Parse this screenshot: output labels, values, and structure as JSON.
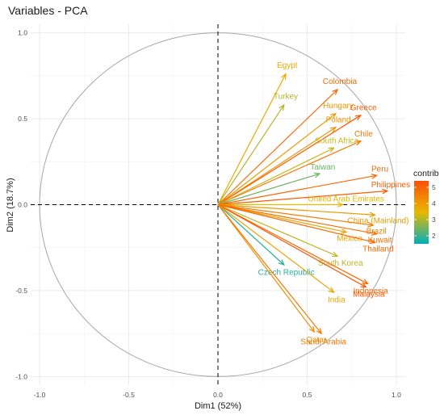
{
  "chart_data": {
    "type": "scatter",
    "title": "Variables - PCA",
    "xlabel": "Dim1 (52%)",
    "ylabel": "Dim2 (18.7%)",
    "xlim": [
      -1.05,
      1.05
    ],
    "ylim": [
      -1.05,
      1.05
    ],
    "xticks": [
      "-1.0",
      "-0.5",
      "0.0",
      "0.5",
      "1.0"
    ],
    "yticks": [
      "-1.0",
      "-0.5",
      "0.0",
      "0.5",
      "1.0"
    ],
    "xtick_values": [
      -1.0,
      -0.5,
      0.0,
      0.5,
      1.0
    ],
    "ytick_values": [
      -1.0,
      -0.5,
      0.0,
      0.5,
      1.0
    ],
    "grid": true,
    "unit_circle": true,
    "legend": {
      "title": "contrib",
      "ticks": [
        "5",
        "4",
        "3",
        "2"
      ],
      "tick_values": [
        5,
        4,
        3,
        2
      ],
      "range": [
        1.5,
        5.4
      ],
      "position": "right",
      "colors": [
        "#00AFBB",
        "#E7B800",
        "#FC4E07"
      ]
    },
    "variables": [
      {
        "name": "Egypt",
        "x": 0.38,
        "y": 0.76,
        "contrib": 3.7
      },
      {
        "name": "Turkey",
        "x": 0.37,
        "y": 0.58,
        "contrib": 3.0
      },
      {
        "name": "Colombia",
        "x": 0.67,
        "y": 0.67,
        "contrib": 4.9
      },
      {
        "name": "Hungary",
        "x": 0.66,
        "y": 0.53,
        "contrib": 4.0
      },
      {
        "name": "Poland",
        "x": 0.66,
        "y": 0.45,
        "contrib": 4.1
      },
      {
        "name": "Greece",
        "x": 0.8,
        "y": 0.52,
        "contrib": 5.1
      },
      {
        "name": "Chile",
        "x": 0.8,
        "y": 0.37,
        "contrib": 4.7
      },
      {
        "name": "South Africa",
        "x": 0.65,
        "y": 0.33,
        "contrib": 3.2
      },
      {
        "name": "Taiwan",
        "x": 0.57,
        "y": 0.18,
        "contrib": 2.4
      },
      {
        "name": "Peru",
        "x": 0.89,
        "y": 0.17,
        "contrib": 4.9
      },
      {
        "name": "Philippines",
        "x": 0.95,
        "y": 0.08,
        "contrib": 5.1
      },
      {
        "name": "United Arab Emirates",
        "x": 0.7,
        "y": 0.0,
        "contrib": 3.5
      },
      {
        "name": "China (Mainland)",
        "x": 0.88,
        "y": -0.06,
        "contrib": 4.0
      },
      {
        "name": "Brazil",
        "x": 0.87,
        "y": -0.12,
        "contrib": 4.5
      },
      {
        "name": "Mexico",
        "x": 0.72,
        "y": -0.16,
        "contrib": 3.8
      },
      {
        "name": "Kuwait",
        "x": 0.89,
        "y": -0.17,
        "contrib": 4.8
      },
      {
        "name": "Thailand",
        "x": 0.88,
        "y": -0.22,
        "contrib": 4.9
      },
      {
        "name": "South Korea",
        "x": 0.67,
        "y": -0.3,
        "contrib": 3.1
      },
      {
        "name": "Czech Republic",
        "x": 0.37,
        "y": -0.35,
        "contrib": 1.8
      },
      {
        "name": "Indonesia",
        "x": 0.84,
        "y": -0.46,
        "contrib": 4.9
      },
      {
        "name": "Malaysia",
        "x": 0.83,
        "y": -0.48,
        "contrib": 5.2
      },
      {
        "name": "India",
        "x": 0.65,
        "y": -0.51,
        "contrib": 3.8
      },
      {
        "name": "Qatar",
        "x": 0.54,
        "y": -0.74,
        "contrib": 4.2
      },
      {
        "name": "Saudi Arabia",
        "x": 0.58,
        "y": -0.75,
        "contrib": 4.6
      }
    ]
  }
}
